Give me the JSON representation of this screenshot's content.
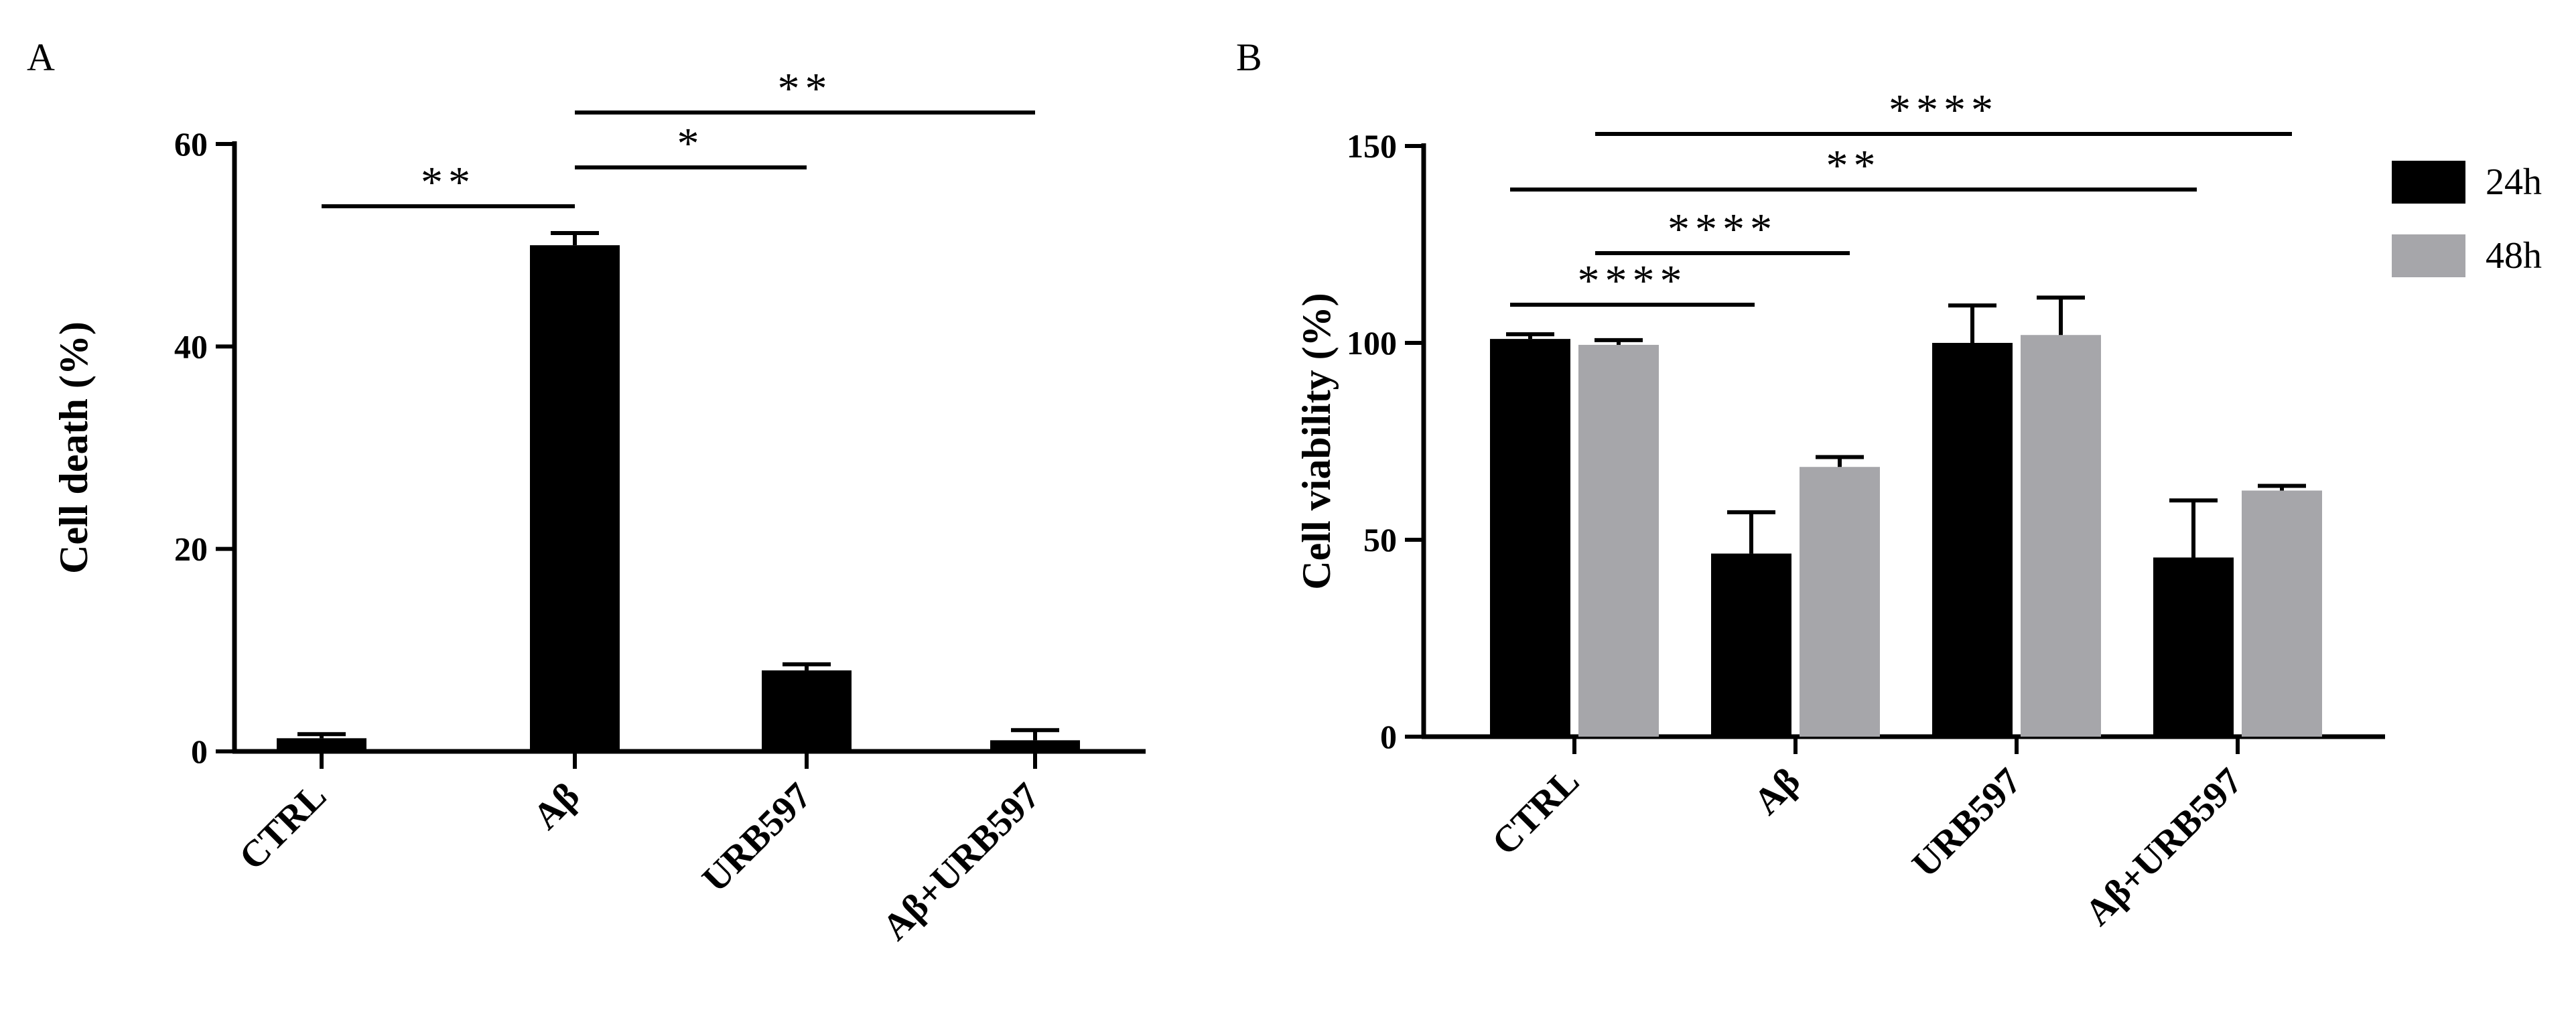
{
  "chart_data": [
    {
      "panel": "A",
      "type": "bar",
      "ylabel": "Cell death (%)",
      "ylim": [
        0,
        60
      ],
      "yticks": [
        0,
        20,
        40,
        60
      ],
      "categories": [
        "CTRL",
        "Aβ",
        "URB597",
        "Aβ+URB597"
      ],
      "series": [
        {
          "values": [
            1.3,
            50.0,
            8.0,
            1.1
          ],
          "errors": [
            0.4,
            1.2,
            0.6,
            1.0
          ],
          "color": "#000000"
        }
      ],
      "significance": [
        {
          "from": 0,
          "to": 1,
          "label": "**",
          "level": 0
        },
        {
          "from": 1,
          "to": 2,
          "label": "*",
          "level": 1
        },
        {
          "from": 1,
          "to": 3,
          "label": "**",
          "level": 2
        }
      ]
    },
    {
      "panel": "B",
      "type": "bar",
      "ylabel": "Cell viability (%)",
      "ylim": [
        0,
        150
      ],
      "yticks": [
        0,
        50,
        100,
        150
      ],
      "categories": [
        "CTRL",
        "Aβ",
        "URB597",
        "Aβ+URB597"
      ],
      "legend_position": "top-right",
      "series": [
        {
          "name": "24h",
          "values": [
            101,
            46.5,
            100,
            45.5
          ],
          "errors": [
            1.2,
            10.5,
            9.5,
            14.5
          ],
          "color": "#000000"
        },
        {
          "name": "48h",
          "values": [
            99.5,
            68.5,
            102,
            62.5
          ],
          "errors": [
            1.2,
            2.5,
            9.5,
            1.2
          ],
          "color": "#a6a6aa"
        }
      ],
      "significance": [
        {
          "from": 0,
          "to": 1,
          "label": "****",
          "level": 0
        },
        {
          "from": 0,
          "to": 1,
          "label": "****",
          "level": 1
        },
        {
          "from": 0,
          "to": 3,
          "label": "**",
          "level": 2
        },
        {
          "from": 0,
          "to": 3,
          "label": "****",
          "level": 3
        }
      ]
    }
  ]
}
